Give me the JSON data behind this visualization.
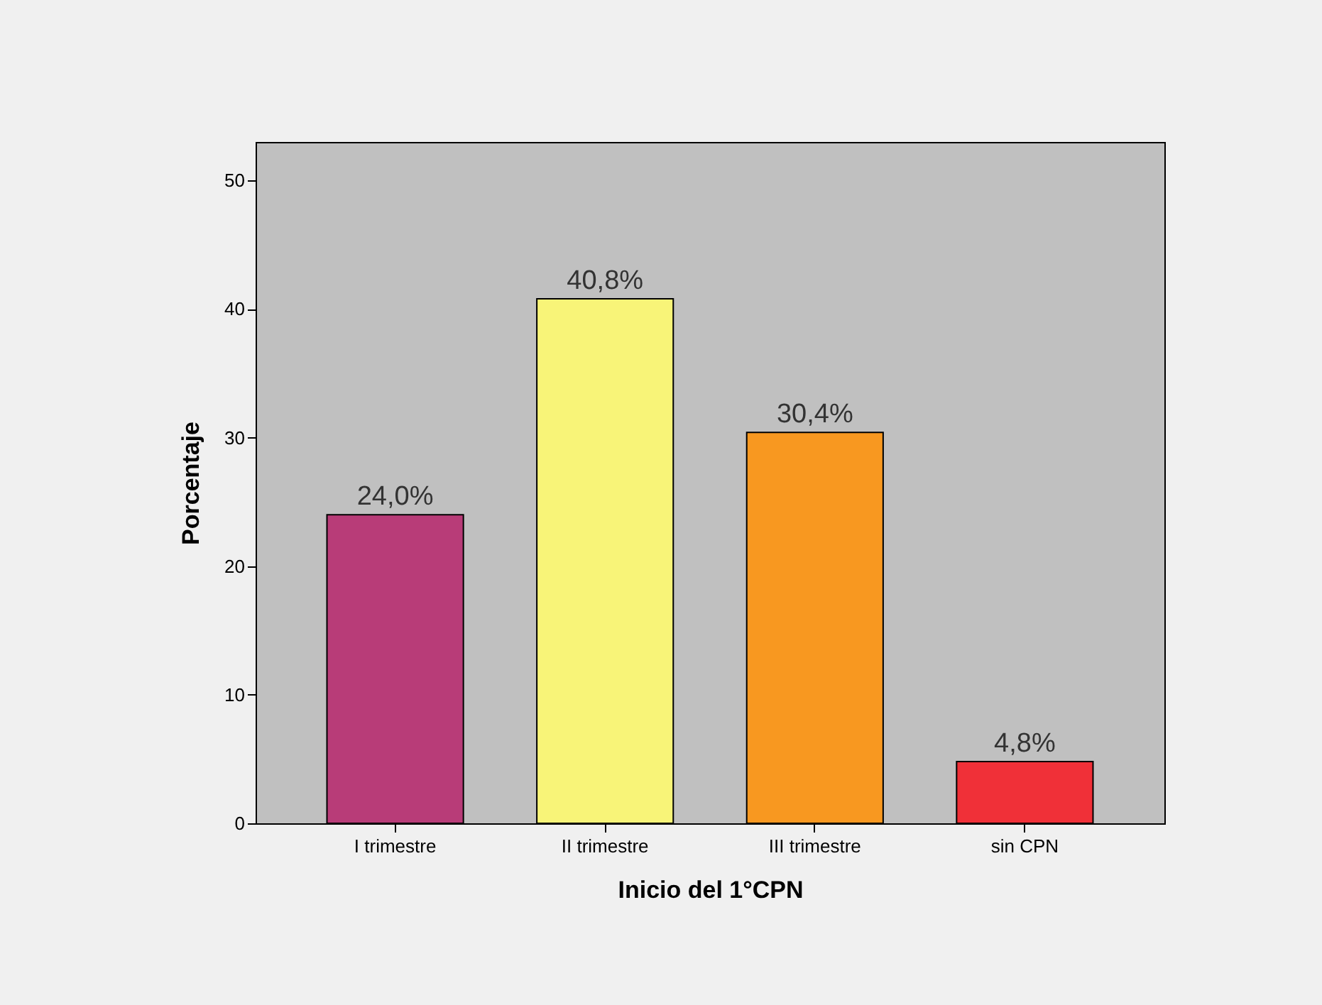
{
  "chart_data": {
    "type": "bar",
    "xlabel": "Inicio del 1°CPN",
    "ylabel": "Porcentaje",
    "categories": [
      "I trimestre",
      "II trimestre",
      "III trimestre",
      "sin CPN"
    ],
    "values": [
      24.0,
      40.8,
      30.4,
      4.8
    ],
    "value_labels": [
      "24,0%",
      "40,8%",
      "30,4%",
      "4,8%"
    ],
    "colors": [
      "#b83c78",
      "#f8f478",
      "#f89820",
      "#f03038"
    ],
    "ylim": [
      0,
      53
    ],
    "yticks": [
      0,
      10,
      20,
      30,
      40,
      50
    ],
    "legend": false,
    "grid": false
  }
}
